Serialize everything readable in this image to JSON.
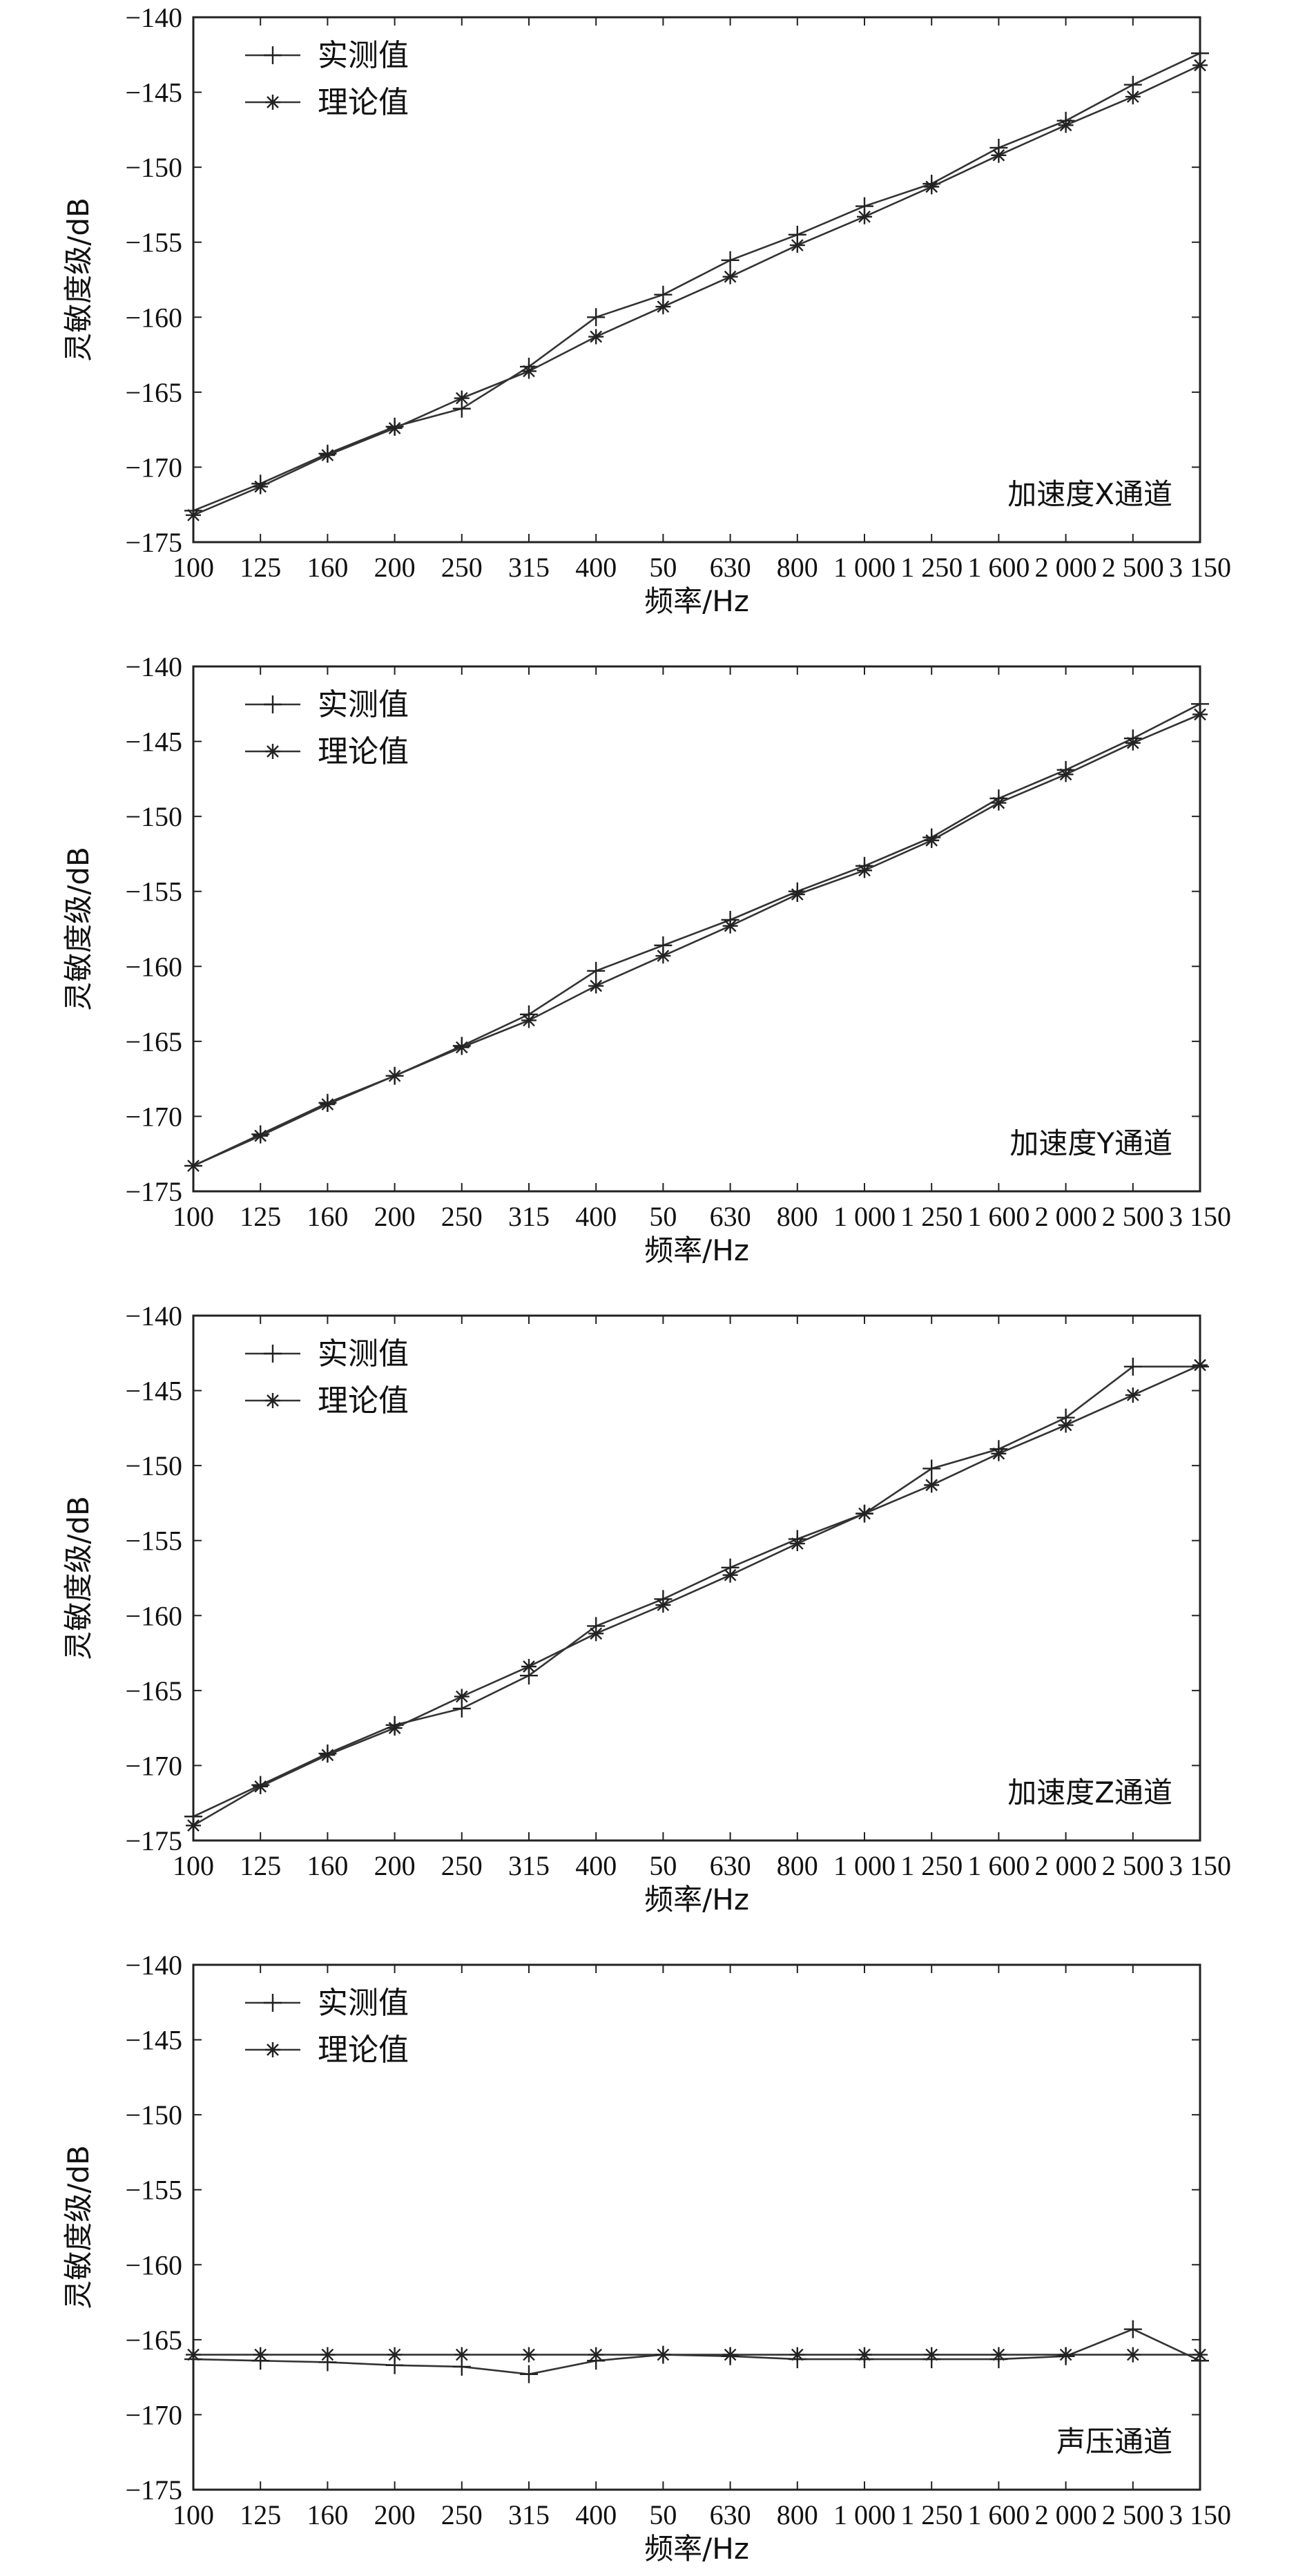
{
  "chart_data": [
    {
      "type": "line",
      "panel_label": "加速度X通道",
      "xlabel": "频率/Hz",
      "ylabel": "灵敏度级/dB",
      "categories": [
        "100",
        "125",
        "160",
        "200",
        "250",
        "315",
        "400",
        "50",
        "630",
        "800",
        "1 000",
        "1 250",
        "1 600",
        "2 000",
        "2 500",
        "3 150"
      ],
      "ylim": [
        -175,
        -140
      ],
      "yticks": [
        -140,
        -145,
        -150,
        -155,
        -160,
        -165,
        -170,
        -175
      ],
      "legend": "top-left",
      "series": [
        {
          "name": "实测值",
          "marker": "plus",
          "values": [
            -172.9,
            -171.1,
            -169.1,
            -167.3,
            -166.1,
            -163.3,
            -160.0,
            -158.5,
            -156.2,
            -154.5,
            -152.6,
            -151.1,
            -148.7,
            -146.9,
            -144.5,
            -142.4
          ]
        },
        {
          "name": "理论值",
          "marker": "star",
          "values": [
            -173.2,
            -171.3,
            -169.2,
            -167.4,
            -165.4,
            -163.6,
            -161.3,
            -159.3,
            -157.3,
            -155.2,
            -153.3,
            -151.3,
            -149.2,
            -147.2,
            -145.3,
            -143.2
          ]
        }
      ]
    },
    {
      "type": "line",
      "panel_label": "加速度Y通道",
      "xlabel": "频率/Hz",
      "ylabel": "灵敏度级/dB",
      "categories": [
        "100",
        "125",
        "160",
        "200",
        "250",
        "315",
        "400",
        "50",
        "630",
        "800",
        "1 000",
        "1 250",
        "1 600",
        "2 000",
        "2 500",
        "3 150"
      ],
      "ylim": [
        -175,
        -140
      ],
      "yticks": [
        -140,
        -145,
        -150,
        -155,
        -160,
        -165,
        -170,
        -175
      ],
      "legend": "top-left",
      "series": [
        {
          "name": "实测值",
          "marker": "plus",
          "values": [
            -173.3,
            -171.2,
            -169.1,
            -167.3,
            -165.3,
            -163.2,
            -160.3,
            -158.6,
            -156.9,
            -155.0,
            -153.3,
            -151.4,
            -148.8,
            -146.9,
            -144.8,
            -142.5
          ]
        },
        {
          "name": "理论值",
          "marker": "star",
          "values": [
            -173.3,
            -171.3,
            -169.2,
            -167.3,
            -165.4,
            -163.6,
            -161.3,
            -159.3,
            -157.3,
            -155.2,
            -153.6,
            -151.6,
            -149.1,
            -147.2,
            -145.1,
            -143.2
          ]
        }
      ]
    },
    {
      "type": "line",
      "panel_label": "加速度Z通道",
      "xlabel": "频率/Hz",
      "ylabel": "灵敏度级/dB",
      "categories": [
        "100",
        "125",
        "160",
        "200",
        "250",
        "315",
        "400",
        "50",
        "630",
        "800",
        "1 000",
        "1 250",
        "1 600",
        "2 000",
        "2 500",
        "3 150"
      ],
      "ylim": [
        -175,
        -140
      ],
      "yticks": [
        -140,
        -145,
        -150,
        -155,
        -160,
        -165,
        -170,
        -175
      ],
      "legend": "top-left",
      "series": [
        {
          "name": "实测值",
          "marker": "plus",
          "values": [
            -173.4,
            -171.3,
            -169.2,
            -167.3,
            -166.2,
            -164.0,
            -160.7,
            -158.9,
            -156.8,
            -154.9,
            -153.2,
            -150.2,
            -148.9,
            -146.8,
            -143.4,
            -143.4
          ]
        },
        {
          "name": "理论值",
          "marker": "star",
          "values": [
            -174.0,
            -171.4,
            -169.3,
            -167.5,
            -165.4,
            -163.4,
            -161.2,
            -159.3,
            -157.3,
            -155.2,
            -153.2,
            -151.3,
            -149.2,
            -147.3,
            -145.3,
            -143.3
          ]
        }
      ]
    },
    {
      "type": "line",
      "panel_label": "声压通道",
      "xlabel": "频率/Hz",
      "ylabel": "灵敏度级/dB",
      "categories": [
        "100",
        "125",
        "160",
        "200",
        "250",
        "315",
        "400",
        "50",
        "630",
        "800",
        "1 000",
        "1 250",
        "1 600",
        "2 000",
        "2 500",
        "3 150"
      ],
      "ylim": [
        -175,
        -140
      ],
      "yticks": [
        -140,
        -145,
        -150,
        -155,
        -160,
        -165,
        -170,
        -175
      ],
      "legend": "top-left",
      "series": [
        {
          "name": "实测值",
          "marker": "plus",
          "values": [
            -166.3,
            -166.4,
            -166.5,
            -166.7,
            -166.8,
            -167.3,
            -166.4,
            -166.0,
            -166.1,
            -166.3,
            -166.3,
            -166.3,
            -166.3,
            -166.1,
            -164.3,
            -166.4
          ]
        },
        {
          "name": "理论值",
          "marker": "star",
          "values": [
            -166.0,
            -166.0,
            -166.0,
            -166.0,
            -166.0,
            -166.0,
            -166.0,
            -166.0,
            -166.0,
            -166.0,
            -166.0,
            -166.0,
            -166.0,
            -166.0,
            -166.0,
            -166.0
          ]
        }
      ]
    }
  ]
}
